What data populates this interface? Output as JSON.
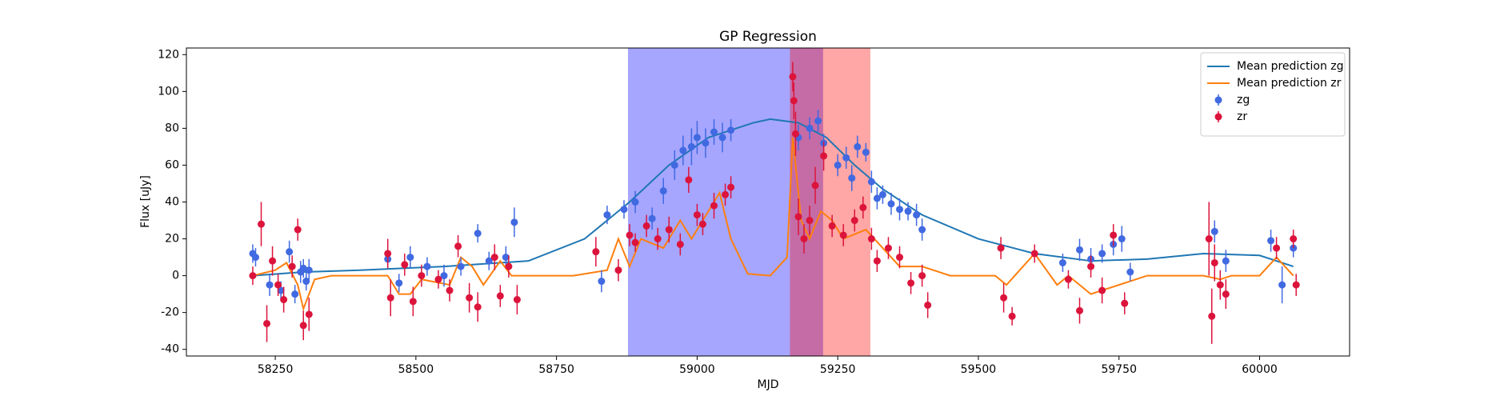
{
  "chart_data": {
    "type": "errorbar",
    "title": "GP Regression",
    "xlabel": "MJD",
    "ylabel": "Flux [uJy]",
    "xlim": [
      58092,
      60160
    ],
    "ylim": [
      -43.6,
      123.6
    ],
    "xticks": [
      58250,
      58500,
      58750,
      59000,
      59250,
      59500,
      59750,
      60000
    ],
    "yticks": [
      -40,
      -20,
      0,
      20,
      40,
      60,
      80,
      100,
      120
    ],
    "legend": "upper right",
    "spans": [
      {
        "x": [
          58877,
          59224
        ],
        "color": "#0000ff"
      },
      {
        "x": [
          59165,
          59308
        ],
        "color": "#ff0000"
      }
    ],
    "series": [
      {
        "name": "Mean prediction zg",
        "kind": "line",
        "color": "#1f77b4",
        "x": [
          58210,
          58300,
          58400,
          58550,
          58700,
          58800,
          58880,
          58950,
          59020,
          59100,
          59130,
          59180,
          59230,
          59280,
          59330,
          59400,
          59500,
          59600,
          59700,
          59800,
          59900,
          60000,
          60060
        ],
        "values": [
          0,
          2,
          3,
          5,
          8,
          20,
          40,
          60,
          75,
          83,
          85,
          83,
          75,
          60,
          47,
          33,
          20,
          12,
          8,
          9,
          12,
          11,
          5
        ]
      },
      {
        "name": "Mean prediction zr",
        "kind": "line",
        "color": "#ff7f0e",
        "x": [
          58210,
          58250,
          58270,
          58290,
          58300,
          58320,
          58350,
          58450,
          58470,
          58490,
          58510,
          58560,
          58580,
          58600,
          58620,
          58650,
          58670,
          58700,
          58780,
          58840,
          58860,
          58880,
          58900,
          58940,
          58970,
          58990,
          59040,
          59060,
          59090,
          59130,
          59160,
          59170,
          59185,
          59200,
          59220,
          59240,
          59260,
          59300,
          59330,
          59360,
          59400,
          59450,
          59530,
          59550,
          59600,
          59640,
          59660,
          59700,
          59750,
          59800,
          59900,
          59930,
          59950,
          60000,
          60030,
          60060
        ],
        "values": [
          0,
          3,
          7,
          -5,
          -18,
          -2,
          0,
          0,
          -10,
          -10,
          -2,
          -5,
          10,
          5,
          -5,
          8,
          0,
          0,
          0,
          3,
          20,
          5,
          20,
          15,
          30,
          20,
          45,
          20,
          1,
          0,
          10,
          75,
          30,
          20,
          35,
          30,
          20,
          25,
          15,
          5,
          5,
          0,
          0,
          -5,
          12,
          -5,
          0,
          -10,
          -5,
          0,
          0,
          -2,
          0,
          0,
          10,
          0
        ]
      },
      {
        "name": "zg",
        "kind": "errorbar",
        "color": "#4169e1",
        "x": [
          58210,
          58215,
          58240,
          58260,
          58275,
          58285,
          58295,
          58300,
          58305,
          58310,
          58450,
          58470,
          58490,
          58520,
          58550,
          58580,
          58610,
          58630,
          58660,
          58675,
          58830,
          58840,
          58870,
          58890,
          58920,
          58940,
          58960,
          58975,
          58990,
          59000,
          59015,
          59030,
          59045,
          59060,
          59180,
          59200,
          59215,
          59225,
          59250,
          59265,
          59275,
          59285,
          59300,
          59310,
          59320,
          59330,
          59345,
          59360,
          59375,
          59390,
          59400,
          59650,
          59680,
          59700,
          59720,
          59740,
          59755,
          59770,
          59920,
          59940,
          60020,
          60040,
          60060
        ],
        "values": [
          12,
          10,
          -5,
          -8,
          13,
          -10,
          2,
          4,
          -3,
          3,
          9,
          -4,
          10,
          5,
          0,
          5,
          23,
          8,
          10,
          29,
          -3,
          33,
          36,
          40,
          31,
          46,
          60,
          68,
          70,
          75,
          72,
          78,
          75,
          79,
          75,
          80,
          84,
          72,
          60,
          64,
          53,
          70,
          67,
          51,
          42,
          44,
          39,
          36,
          35,
          33,
          25,
          7,
          14,
          9,
          12,
          17,
          20,
          2,
          24,
          8,
          19,
          -5,
          15
        ],
        "errors": [
          5,
          5,
          6,
          5,
          6,
          5,
          6,
          5,
          5,
          6,
          5,
          5,
          6,
          5,
          6,
          5,
          5,
          5,
          6,
          8,
          6,
          5,
          5,
          6,
          6,
          7,
          8,
          8,
          10,
          9,
          8,
          7,
          8,
          6,
          7,
          6,
          6,
          5,
          6,
          6,
          7,
          6,
          5,
          6,
          6,
          5,
          6,
          6,
          5,
          6,
          6,
          5,
          6,
          6,
          5,
          6,
          7,
          5,
          6,
          6,
          6,
          10,
          5
        ]
      },
      {
        "name": "zr",
        "kind": "errorbar",
        "color": "#dc143c",
        "x": [
          58210,
          58225,
          58235,
          58245,
          58255,
          58265,
          58280,
          58290,
          58300,
          58310,
          58450,
          58455,
          58480,
          58495,
          58510,
          58540,
          58560,
          58575,
          58595,
          58610,
          58640,
          58650,
          58665,
          58680,
          58820,
          58860,
          58880,
          58890,
          58910,
          58930,
          58950,
          58970,
          58985,
          59000,
          59010,
          59030,
          59050,
          59060,
          59170,
          59172,
          59175,
          59180,
          59190,
          59200,
          59210,
          59225,
          59240,
          59260,
          59280,
          59295,
          59310,
          59320,
          59340,
          59360,
          59380,
          59400,
          59410,
          59540,
          59545,
          59560,
          59600,
          59660,
          59680,
          59700,
          59720,
          59740,
          59760,
          59910,
          59915,
          59920,
          59930,
          59940,
          60030,
          60060,
          60065
        ],
        "values": [
          0,
          28,
          -26,
          8,
          -5,
          -13,
          5,
          25,
          -27,
          -21,
          12,
          -12,
          6,
          -14,
          0,
          -2,
          -8,
          16,
          -12,
          -17,
          10,
          -11,
          5,
          -13,
          13,
          3,
          22,
          18,
          27,
          20,
          25,
          17,
          52,
          33,
          28,
          38,
          44,
          48,
          108,
          95,
          77,
          32,
          20,
          30,
          49,
          65,
          27,
          22,
          30,
          37,
          20,
          8,
          15,
          10,
          -4,
          0,
          -16,
          15,
          -12,
          -22,
          12,
          -2,
          -19,
          5,
          -8,
          22,
          -15,
          20,
          -22,
          7,
          -5,
          -10,
          15,
          20,
          -5
        ],
        "errors": [
          5,
          12,
          10,
          8,
          6,
          7,
          6,
          6,
          8,
          9,
          8,
          10,
          6,
          8,
          6,
          5,
          6,
          6,
          8,
          8,
          7,
          6,
          6,
          8,
          8,
          6,
          6,
          5,
          6,
          6,
          7,
          6,
          7,
          6,
          6,
          7,
          6,
          6,
          8,
          10,
          12,
          10,
          8,
          8,
          10,
          8,
          6,
          6,
          6,
          6,
          6,
          6,
          6,
          6,
          6,
          6,
          7,
          6,
          8,
          5,
          5,
          5,
          7,
          6,
          7,
          6,
          6,
          20,
          15,
          10,
          8,
          8,
          6,
          5,
          6
        ]
      }
    ]
  }
}
